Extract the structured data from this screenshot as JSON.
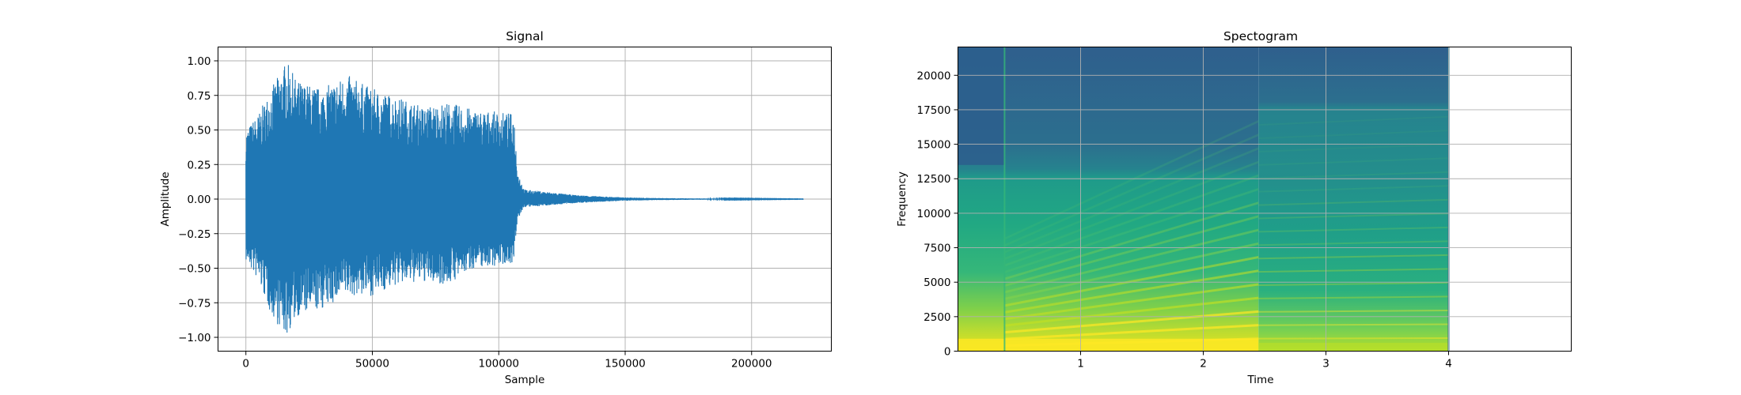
{
  "chart_data": [
    {
      "type": "line",
      "title": "Signal",
      "xlabel": "Sample",
      "ylabel": "Amplitude",
      "xlim": [
        -11025,
        231525
      ],
      "ylim": [
        -1.1,
        1.1
      ],
      "xticks": [
        0,
        50000,
        100000,
        150000,
        200000
      ],
      "xtick_labels": [
        "0",
        "50000",
        "100000",
        "150000",
        "200000"
      ],
      "yticks": [
        -1.0,
        -0.75,
        -0.5,
        -0.25,
        0.0,
        0.25,
        0.5,
        0.75,
        1.0
      ],
      "ytick_labels": [
        "−1.00",
        "−0.75",
        "−0.50",
        "−0.25",
        "0.00",
        "0.25",
        "0.50",
        "0.75",
        "1.00"
      ],
      "grid": true,
      "line_color": "#1f77b4",
      "series": [
        {
          "x": [
            0,
            5000,
            10000,
            16000,
            20000,
            30000,
            40000,
            50000,
            60000,
            70000,
            80000,
            90000,
            100000,
            106000,
            107500,
            110000,
            120000,
            130000,
            140000,
            150000,
            160000,
            175000,
            190000,
            205000,
            220500
          ],
          "upper": [
            0.5,
            0.62,
            0.8,
            1.0,
            0.86,
            0.8,
            0.9,
            0.8,
            0.74,
            0.67,
            0.7,
            0.65,
            0.63,
            0.62,
            0.2,
            0.07,
            0.05,
            0.03,
            0.02,
            0.012,
            0.008,
            0.005,
            0.003,
            0.002,
            0.001
          ],
          "lower": [
            -0.45,
            -0.6,
            -0.84,
            -1.0,
            -0.85,
            -0.8,
            -0.7,
            -0.7,
            -0.62,
            -0.6,
            -0.62,
            -0.5,
            -0.48,
            -0.46,
            -0.15,
            -0.06,
            -0.045,
            -0.03,
            -0.02,
            -0.012,
            -0.008,
            -0.005,
            -0.003,
            -0.002,
            -0.001
          ]
        }
      ]
    },
    {
      "type": "heatmap",
      "title": "Spectogram",
      "xlabel": "Time",
      "ylabel": "Frequency",
      "xlim": [
        0.0,
        5.0
      ],
      "ylim": [
        0,
        22050
      ],
      "data_time_end": 4.0,
      "xticks": [
        1,
        2,
        3,
        4
      ],
      "xtick_labels": [
        "1",
        "2",
        "3",
        "4"
      ],
      "yticks": [
        0,
        2500,
        5000,
        7500,
        10000,
        12500,
        15000,
        17500,
        20000
      ],
      "ytick_labels": [
        "0",
        "2500",
        "5000",
        "7500",
        "10000",
        "12500",
        "15000",
        "17500",
        "20000"
      ],
      "grid": true,
      "colormap": "viridis",
      "note_onset_time": 0.38,
      "note_change_time": 2.45
    }
  ]
}
